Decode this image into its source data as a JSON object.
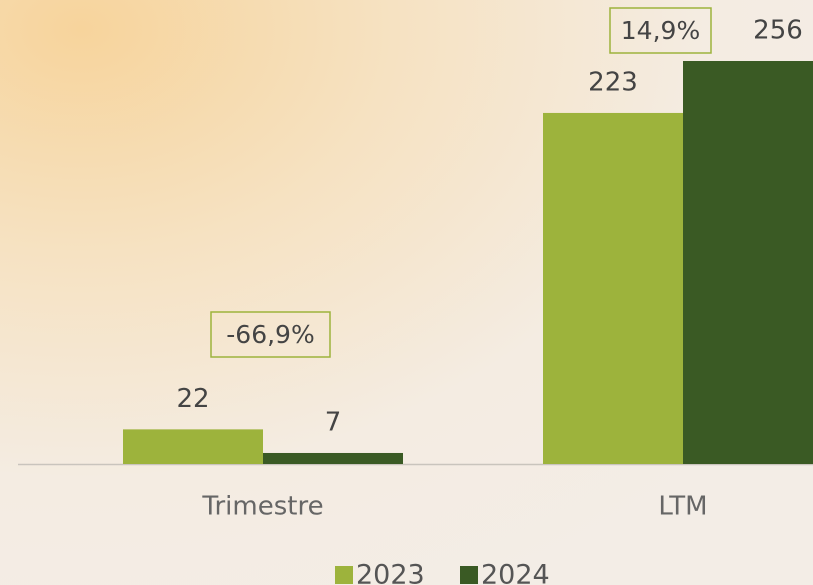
{
  "chart_data": {
    "type": "bar",
    "categories": [
      "Trimestre",
      "LTM"
    ],
    "series": [
      {
        "name": "2023",
        "color": "#9db33c",
        "values": [
          22,
          223
        ]
      },
      {
        "name": "2024",
        "color": "#3a5a24",
        "values": [
          7,
          256
        ]
      }
    ],
    "annotations": [
      "-66,9%",
      "14,9%"
    ]
  }
}
